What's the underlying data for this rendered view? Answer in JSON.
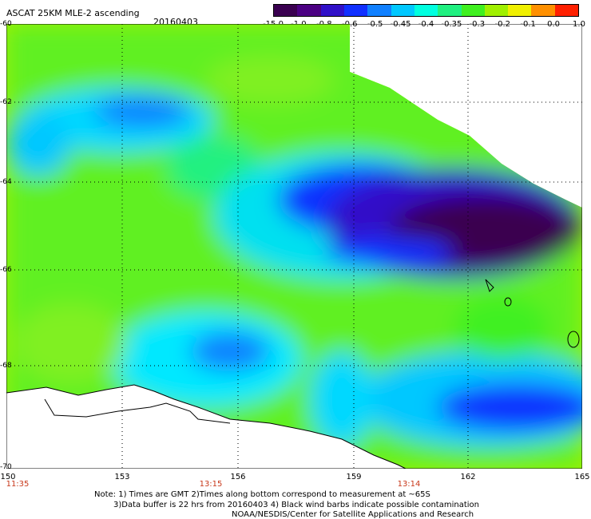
{
  "title": "ASCAT 25KM MLE-2 ascending",
  "date": "20160403",
  "colorbar": {
    "labels": [
      "-15.0",
      "-1.0",
      "-0.8",
      "-0.6",
      "-0.5",
      "-0.45",
      "-0.4",
      "-0.35",
      "-0.3",
      "-0.2",
      "-0.1",
      "0.0",
      "1.0"
    ],
    "colors": [
      "#3a0050",
      "#4b0082",
      "#3010c8",
      "#1030ff",
      "#1080ff",
      "#00c8ff",
      "#00ffe0",
      "#20f080",
      "#40f020",
      "#a0f000",
      "#f0f000",
      "#ff9000",
      "#ff2000"
    ]
  },
  "map": {
    "latitudes": [
      "-60",
      "-62",
      "-64",
      "-66",
      "-68",
      "-70"
    ],
    "longitudes": [
      "150",
      "153",
      "156",
      "159",
      "162",
      "165"
    ],
    "times": [
      "11:35",
      "13:15",
      "13:14"
    ]
  },
  "notes": {
    "line1": "Note: 1) Times are GMT 2)Times along bottom correspond to measurement at ~65S",
    "line2": "3)Data buffer is 22 hrs from 20160403 4) Black wind barbs indicate possible contamination",
    "line3": "NOAA/NESDIS/Center for Satellite Applications and Research"
  }
}
